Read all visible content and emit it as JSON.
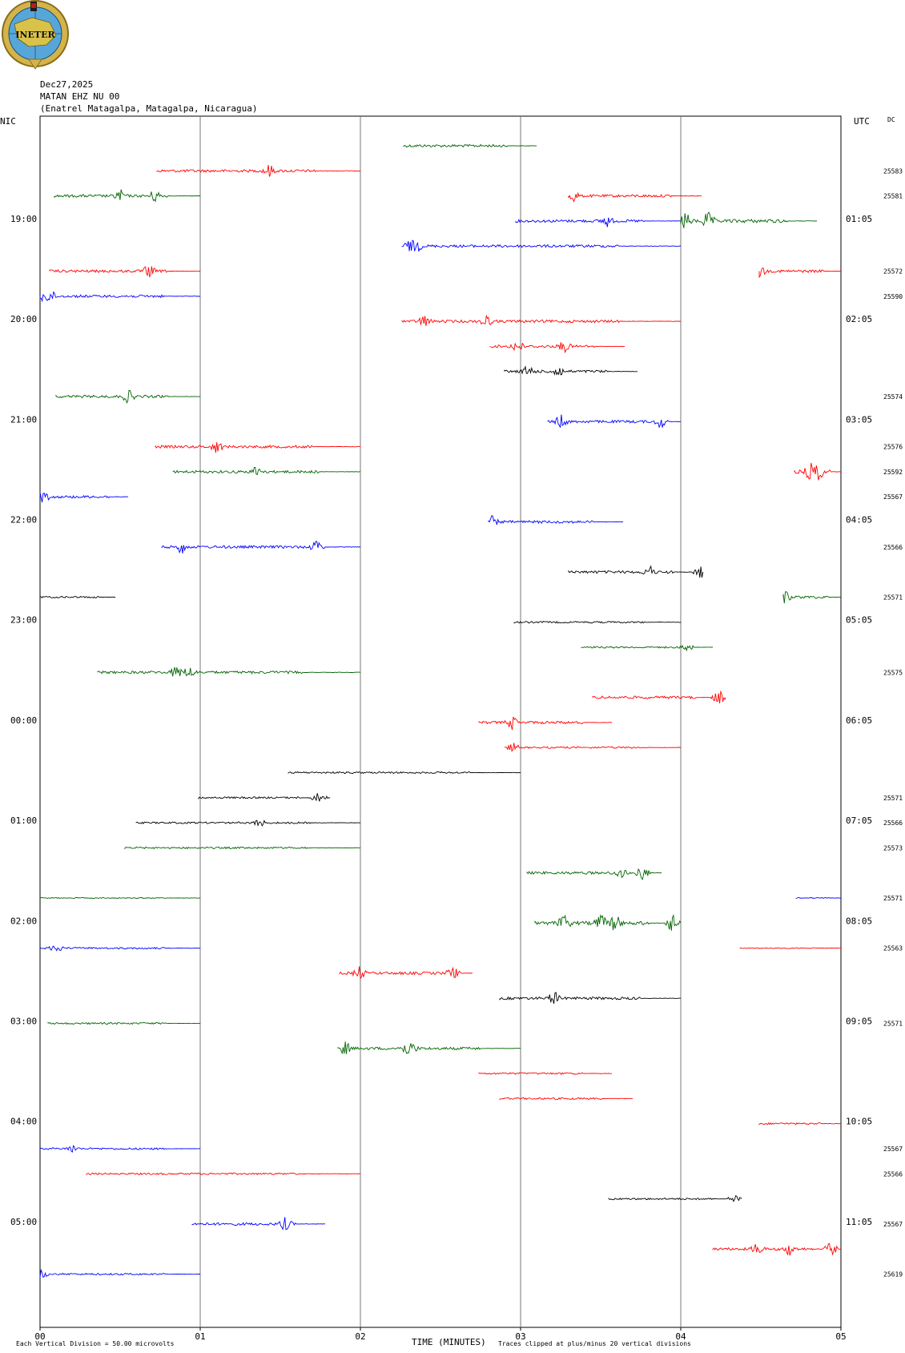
{
  "header": {
    "logo_text": "INETER",
    "date": "Dec27,2025",
    "station": "MATAN EHZ NU 00",
    "location": "(Enatrel Matagalpa, Matagalpa, Nicaragua)",
    "left_tz": "NIC",
    "right_tz": "UTC",
    "dc_label": "DC"
  },
  "footer": {
    "scale_note": "Each Vertical Division =   50.00 microvolts",
    "x_title": "TIME (MINUTES)",
    "clip_note": "Traces clipped at plus/minus 20 vertical divisions"
  },
  "chart_data": {
    "type": "line",
    "title": "MATAN EHZ NU 00 helicorder, Dec27,2025",
    "xlabel": "TIME (MINUTES)",
    "xlim": [
      0,
      5
    ],
    "x_ticks": [
      "00",
      "01",
      "02",
      "03",
      "04",
      "05"
    ],
    "row_minutes": 5,
    "left_hour_labels": [
      "19:00",
      "20:00",
      "21:00",
      "22:00",
      "23:00",
      "00:00",
      "01:00",
      "02:00",
      "03:00",
      "04:00",
      "05:00"
    ],
    "right_hour_labels": [
      "01:05",
      "02:05",
      "03:05",
      "04:05",
      "05:05",
      "06:05",
      "07:05",
      "08:05",
      "09:05",
      "10:05",
      "11:05"
    ],
    "hour_label_rows": [
      3,
      7,
      11,
      15,
      19,
      23,
      27,
      31,
      35,
      39,
      43
    ],
    "colors": {
      "g": "#006400",
      "r": "#ff0000",
      "b": "#0000ff",
      "k": "#000000"
    },
    "traces": [
      {
        "row": 0,
        "start": 2.27,
        "end": 3.1,
        "color": "g",
        "amp": 3,
        "events": []
      },
      {
        "row": 1,
        "start": 0.73,
        "end": 2.0,
        "color": "r",
        "amp": 3,
        "events": [
          0.55
        ]
      },
      {
        "row": 2,
        "start": 0.09,
        "end": 1.0,
        "color": "g",
        "amp": 3,
        "events": [
          0.45,
          0.69
        ]
      },
      {
        "row": 2,
        "start": 3.3,
        "end": 4.13,
        "color": "r",
        "amp": 3,
        "events": [
          0.03
        ]
      },
      {
        "row": 3,
        "start": 2.97,
        "end": 4.0,
        "color": "b",
        "amp": 3,
        "events": [
          0.55
        ]
      },
      {
        "row": 3,
        "start": 4.0,
        "end": 4.85,
        "color": "g",
        "amp": 4,
        "events": [
          0.03,
          0.2
        ]
      },
      {
        "row": 4,
        "start": 2.26,
        "end": 4.0,
        "color": "b",
        "amp": 3,
        "events": [
          0.03,
          0.05
        ]
      },
      {
        "row": 5,
        "start": 0.06,
        "end": 1.0,
        "color": "r",
        "amp": 3,
        "events": [
          0.66
        ]
      },
      {
        "row": 5,
        "start": 4.49,
        "end": 5.0,
        "color": "r",
        "amp": 3,
        "events": [
          0.0
        ]
      },
      {
        "row": 6,
        "start": 0.0,
        "end": 1.0,
        "color": "b",
        "amp": 3,
        "events": [
          0.02,
          0.06
        ]
      },
      {
        "row": 7,
        "start": 2.26,
        "end": 4.0,
        "color": "r",
        "amp": 3,
        "events": [
          0.08,
          0.3
        ]
      },
      {
        "row": 8,
        "start": 2.81,
        "end": 3.65,
        "color": "r",
        "amp": 3,
        "events": [
          0.2,
          0.55
        ]
      },
      {
        "row": 9,
        "start": 2.9,
        "end": 3.73,
        "color": "k",
        "amp": 3,
        "events": [
          0.18,
          0.4
        ]
      },
      {
        "row": 10,
        "start": 0.1,
        "end": 1.0,
        "color": "g",
        "amp": 3,
        "events": [
          0.5
        ]
      },
      {
        "row": 11,
        "start": 3.17,
        "end": 4.0,
        "color": "b",
        "amp": 3,
        "events": [
          0.1,
          0.85
        ]
      },
      {
        "row": 12,
        "start": 0.72,
        "end": 2.0,
        "color": "r",
        "amp": 3,
        "events": [
          0.3
        ]
      },
      {
        "row": 13,
        "start": 0.83,
        "end": 2.0,
        "color": "g",
        "amp": 3,
        "events": [
          0.45
        ]
      },
      {
        "row": 13,
        "start": 4.71,
        "end": 5.0,
        "color": "r",
        "amp": 4,
        "events": [
          0.35,
          0.5
        ]
      },
      {
        "row": 14,
        "start": 0.0,
        "end": 0.55,
        "color": "b",
        "amp": 3,
        "events": [
          0.03
        ]
      },
      {
        "row": 15,
        "start": 2.8,
        "end": 3.64,
        "color": "b",
        "amp": 3,
        "events": [
          0.02
        ]
      },
      {
        "row": 16,
        "start": 0.76,
        "end": 2.0,
        "color": "b",
        "amp": 3,
        "events": [
          0.1,
          0.78
        ]
      },
      {
        "row": 17,
        "start": 3.3,
        "end": 4.14,
        "color": "k",
        "amp": 3,
        "events": [
          0.6,
          0.98
        ]
      },
      {
        "row": 18,
        "start": 0.0,
        "end": 0.47,
        "color": "k",
        "amp": 2,
        "events": []
      },
      {
        "row": 18,
        "start": 4.64,
        "end": 5.0,
        "color": "g",
        "amp": 3,
        "events": [
          0.02
        ]
      },
      {
        "row": 19,
        "start": 2.96,
        "end": 4.0,
        "color": "k",
        "amp": 2,
        "events": []
      },
      {
        "row": 20,
        "start": 3.38,
        "end": 4.2,
        "color": "g",
        "amp": 2,
        "events": [
          0.8
        ]
      },
      {
        "row": 21,
        "start": 0.36,
        "end": 2.0,
        "color": "g",
        "amp": 3,
        "events": [
          0.3,
          0.35
        ]
      },
      {
        "row": 22,
        "start": 3.45,
        "end": 4.28,
        "color": "r",
        "amp": 3,
        "events": [
          0.95
        ]
      },
      {
        "row": 23,
        "start": 2.74,
        "end": 3.57,
        "color": "r",
        "amp": 3,
        "events": [
          0.25
        ]
      },
      {
        "row": 24,
        "start": 2.9,
        "end": 4.0,
        "color": "r",
        "amp": 2,
        "events": [
          0.05
        ]
      },
      {
        "row": 25,
        "start": 1.55,
        "end": 3.0,
        "color": "k",
        "amp": 2,
        "events": []
      },
      {
        "row": 26,
        "start": 0.99,
        "end": 1.81,
        "color": "k",
        "amp": 2,
        "events": [
          0.9,
          0.93
        ]
      },
      {
        "row": 27,
        "start": 0.6,
        "end": 2.0,
        "color": "k",
        "amp": 2,
        "events": [
          0.55
        ]
      },
      {
        "row": 28,
        "start": 0.53,
        "end": 2.0,
        "color": "g",
        "amp": 2,
        "events": []
      },
      {
        "row": 29,
        "start": 3.04,
        "end": 3.88,
        "color": "g",
        "amp": 3,
        "events": [
          0.7,
          0.86
        ]
      },
      {
        "row": 30,
        "start": 0.0,
        "end": 1.0,
        "color": "g",
        "amp": 1,
        "events": []
      },
      {
        "row": 30,
        "start": 4.72,
        "end": 5.0,
        "color": "b",
        "amp": 1,
        "events": []
      },
      {
        "row": 31,
        "start": 3.09,
        "end": 4.0,
        "color": "g",
        "amp": 4,
        "events": [
          0.2,
          0.45,
          0.55,
          0.94
        ]
      },
      {
        "row": 32,
        "start": 0.0,
        "end": 1.0,
        "color": "b",
        "amp": 2,
        "events": [
          0.1
        ]
      },
      {
        "row": 32,
        "start": 4.37,
        "end": 5.0,
        "color": "r",
        "amp": 1,
        "events": []
      },
      {
        "row": 33,
        "start": 1.87,
        "end": 2.7,
        "color": "r",
        "amp": 3,
        "events": [
          0.15,
          0.85
        ]
      },
      {
        "row": 34,
        "start": 2.87,
        "end": 4.0,
        "color": "k",
        "amp": 3,
        "events": [
          0.3
        ]
      },
      {
        "row": 35,
        "start": 0.05,
        "end": 1.0,
        "color": "g",
        "amp": 2,
        "events": []
      },
      {
        "row": 36,
        "start": 1.86,
        "end": 3.0,
        "color": "g",
        "amp": 3,
        "events": [
          0.04,
          0.37,
          0.4
        ]
      },
      {
        "row": 37,
        "start": 2.74,
        "end": 3.57,
        "color": "r",
        "amp": 2,
        "events": []
      },
      {
        "row": 38,
        "start": 2.87,
        "end": 3.7,
        "color": "r",
        "amp": 2,
        "events": []
      },
      {
        "row": 39,
        "start": 4.49,
        "end": 5.0,
        "color": "r",
        "amp": 2,
        "events": []
      },
      {
        "row": 40,
        "start": 0.0,
        "end": 1.0,
        "color": "b",
        "amp": 2,
        "events": [
          0.2
        ]
      },
      {
        "row": 41,
        "start": 0.29,
        "end": 2.0,
        "color": "r",
        "amp": 2,
        "events": []
      },
      {
        "row": 42,
        "start": 3.55,
        "end": 4.38,
        "color": "k",
        "amp": 2,
        "events": [
          0.95
        ]
      },
      {
        "row": 43,
        "start": 0.95,
        "end": 1.78,
        "color": "b",
        "amp": 3,
        "events": [
          0.7
        ]
      },
      {
        "row": 44,
        "start": 4.2,
        "end": 5.0,
        "color": "r",
        "amp": 3,
        "events": [
          0.35,
          0.6,
          0.92
        ]
      },
      {
        "row": 45,
        "start": 0.0,
        "end": 1.0,
        "color": "b",
        "amp": 2,
        "events": [
          0.01
        ]
      }
    ],
    "dc_labels": [
      {
        "row": 1,
        "label": "25583"
      },
      {
        "row": 2,
        "label": "25581"
      },
      {
        "row": 5,
        "label": "25572"
      },
      {
        "row": 6,
        "label": "25590"
      },
      {
        "row": 10,
        "label": "25574"
      },
      {
        "row": 12,
        "label": "25576"
      },
      {
        "row": 13,
        "label": "25592"
      },
      {
        "row": 14,
        "label": "25567"
      },
      {
        "row": 16,
        "label": "25566"
      },
      {
        "row": 18,
        "label": "25571"
      },
      {
        "row": 21,
        "label": "25575"
      },
      {
        "row": 26,
        "label": "25571"
      },
      {
        "row": 27,
        "label": "25566"
      },
      {
        "row": 28,
        "label": "25573"
      },
      {
        "row": 30,
        "label": "25571"
      },
      {
        "row": 32,
        "label": "25563"
      },
      {
        "row": 35,
        "label": "25571"
      },
      {
        "row": 40,
        "label": "25567"
      },
      {
        "row": 41,
        "label": "25566"
      },
      {
        "row": 43,
        "label": "25567"
      },
      {
        "row": 45,
        "label": "25619"
      }
    ]
  }
}
